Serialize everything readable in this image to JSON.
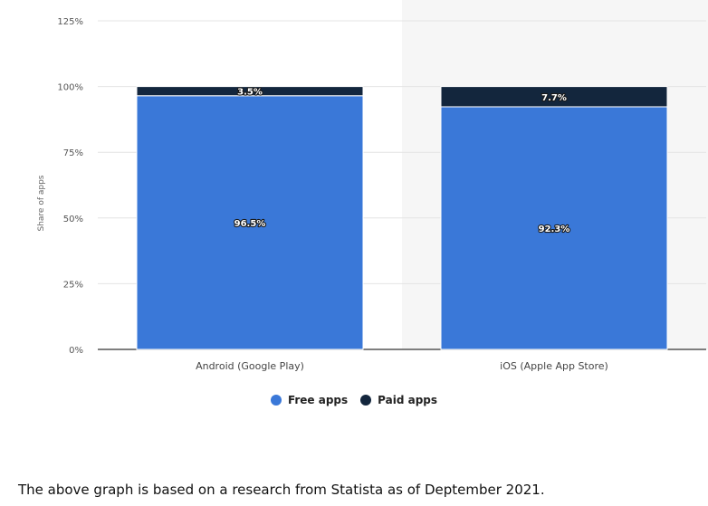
{
  "chart_data": {
    "type": "bar",
    "stacked": true,
    "categories": [
      "Android (Google Play)",
      "iOS (Apple App Store)"
    ],
    "series": [
      {
        "name": "Free apps",
        "values": [
          96.5,
          92.3
        ],
        "color": "#3a78d8",
        "labels": [
          "96.5%",
          "92.3%"
        ]
      },
      {
        "name": "Paid apps",
        "values": [
          3.5,
          7.7
        ],
        "color": "#13263d",
        "labels": [
          "3.5%",
          "7.7%"
        ]
      }
    ],
    "ylabel": "Share of apps",
    "ylim": [
      0,
      125
    ],
    "yticks": [
      0,
      25,
      50,
      75,
      100,
      125
    ],
    "ytick_labels": [
      "0%",
      "25%",
      "50%",
      "75%",
      "100%",
      "125%"
    ],
    "grid": true,
    "legend_position": "bottom-center"
  },
  "caption": "The above graph is based on a research from Statista as of Deptember 2021."
}
